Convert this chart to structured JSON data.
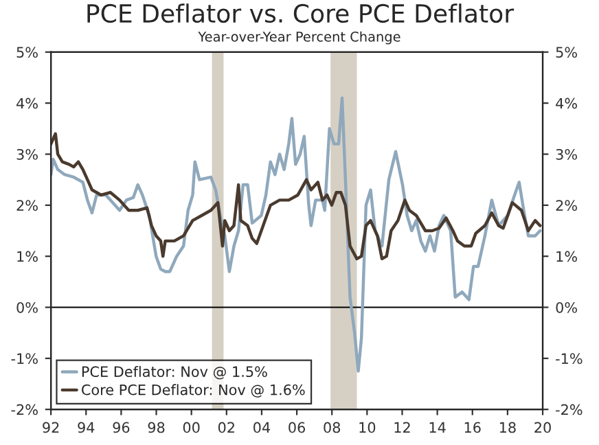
{
  "chart_data": {
    "type": "line",
    "title": "PCE Deflator vs. Core PCE Deflator",
    "subtitle": "Year-over-Year Percent Change",
    "series": [
      {
        "name": "PCE Deflator: Nov @ 1.5%",
        "color": "#8fa8bc",
        "x": [
          1992.0,
          1992.13,
          1992.39,
          1992.78,
          1993.3,
          1993.82,
          1994.08,
          1994.34,
          1994.6,
          1995.13,
          1995.65,
          1995.91,
          1996.3,
          1996.69,
          1996.95,
          1997.21,
          1997.6,
          1997.99,
          1998.25,
          1998.51,
          1998.77,
          1999.16,
          1999.55,
          1999.81,
          2000.07,
          2000.2,
          2000.46,
          2001.11,
          2001.38,
          2001.64,
          2001.9,
          2002.16,
          2002.42,
          2002.68,
          2002.94,
          2003.2,
          2003.46,
          2003.98,
          2004.24,
          2004.5,
          2004.76,
          2005.02,
          2005.28,
          2005.54,
          2005.72,
          2005.93,
          2006.19,
          2006.42,
          2006.68,
          2006.81,
          2007.07,
          2007.46,
          2007.59,
          2007.86,
          2008.12,
          2008.38,
          2008.58,
          2008.77,
          2009.03,
          2009.29,
          2009.5,
          2009.68,
          2009.94,
          2010.2,
          2010.46,
          2010.85,
          2011.24,
          2011.63,
          2012.02,
          2012.28,
          2012.54,
          2012.8,
          2013.06,
          2013.32,
          2013.58,
          2013.84,
          2014.1,
          2014.37,
          2014.76,
          2015.02,
          2015.41,
          2015.8,
          2016.06,
          2016.32,
          2016.71,
          2017.1,
          2017.49,
          2018.01,
          2018.4,
          2018.66,
          2018.92,
          2019.18,
          2019.57,
          2019.85
        ],
        "values": [
          2.6,
          2.9,
          2.7,
          2.6,
          2.55,
          2.45,
          2.1,
          1.85,
          2.2,
          2.2,
          2.0,
          1.9,
          2.1,
          2.15,
          2.4,
          2.2,
          1.8,
          1.0,
          0.75,
          0.7,
          0.7,
          1.0,
          1.2,
          1.9,
          2.2,
          2.85,
          2.5,
          2.55,
          2.3,
          1.8,
          1.4,
          0.7,
          1.2,
          1.5,
          2.4,
          2.4,
          1.65,
          1.8,
          2.2,
          2.85,
          2.6,
          3.0,
          2.7,
          3.2,
          3.7,
          2.8,
          3.0,
          3.35,
          2.0,
          1.6,
          2.1,
          2.1,
          1.9,
          3.5,
          3.2,
          3.2,
          4.1,
          2.5,
          0.2,
          -0.5,
          -1.25,
          -0.6,
          2.0,
          2.3,
          1.5,
          1.2,
          2.5,
          3.05,
          2.4,
          1.8,
          1.5,
          1.7,
          1.3,
          1.1,
          1.4,
          1.1,
          1.6,
          1.8,
          1.5,
          0.2,
          0.3,
          0.15,
          0.8,
          0.8,
          1.4,
          2.1,
          1.6,
          1.8,
          2.2,
          2.45,
          1.9,
          1.4,
          1.4,
          1.5
        ]
      },
      {
        "name": "Core PCE Deflator: Nov @ 1.6%",
        "color": "#4a3a2e",
        "x": [
          1992.0,
          1992.13,
          1992.26,
          1992.39,
          1992.65,
          1993.04,
          1993.3,
          1993.56,
          1993.82,
          1994.08,
          1994.34,
          1994.86,
          1995.39,
          1995.91,
          1996.43,
          1996.95,
          1997.47,
          1997.73,
          1997.99,
          1998.25,
          1998.38,
          1998.51,
          1999.03,
          1999.55,
          2000.07,
          2000.59,
          2001.11,
          2001.51,
          2001.77,
          2001.9,
          2002.16,
          2002.42,
          2002.68,
          2002.81,
          2003.2,
          2003.46,
          2003.72,
          2003.98,
          2004.5,
          2005.02,
          2005.54,
          2006.06,
          2006.55,
          2006.81,
          2007.2,
          2007.46,
          2007.72,
          2007.99,
          2008.25,
          2008.51,
          2008.77,
          2009.03,
          2009.42,
          2009.68,
          2009.94,
          2010.2,
          2010.59,
          2010.85,
          2011.11,
          2011.37,
          2011.76,
          2012.15,
          2012.41,
          2012.8,
          2013.32,
          2013.71,
          2014.1,
          2014.5,
          2014.89,
          2015.15,
          2015.54,
          2015.93,
          2016.19,
          2016.71,
          2017.1,
          2017.49,
          2017.75,
          2018.27,
          2018.79,
          2019.18,
          2019.57,
          2019.85
        ],
        "values": [
          3.2,
          3.3,
          3.4,
          3.0,
          2.85,
          2.8,
          2.75,
          2.85,
          2.7,
          2.5,
          2.3,
          2.2,
          2.25,
          2.1,
          1.9,
          1.9,
          1.95,
          1.6,
          1.4,
          1.3,
          1.0,
          1.3,
          1.3,
          1.4,
          1.7,
          1.8,
          1.9,
          2.05,
          1.2,
          1.7,
          1.5,
          1.6,
          2.4,
          1.7,
          1.6,
          1.35,
          1.25,
          1.5,
          2.0,
          2.1,
          2.1,
          2.2,
          2.5,
          2.3,
          2.45,
          2.1,
          2.2,
          2.0,
          2.25,
          2.25,
          2.0,
          1.2,
          0.95,
          1.0,
          1.6,
          1.7,
          1.4,
          0.95,
          1.0,
          1.5,
          1.7,
          2.1,
          1.9,
          1.8,
          1.5,
          1.5,
          1.55,
          1.75,
          1.5,
          1.3,
          1.2,
          1.2,
          1.45,
          1.6,
          1.85,
          1.6,
          1.55,
          2.05,
          1.9,
          1.5,
          1.7,
          1.6
        ]
      }
    ],
    "xlim": [
      1992,
      2020
    ],
    "xticks": [
      {
        "value": 1992,
        "label": "92"
      },
      {
        "value": 1994,
        "label": "94"
      },
      {
        "value": 1996,
        "label": "96"
      },
      {
        "value": 1998,
        "label": "98"
      },
      {
        "value": 2000,
        "label": "00"
      },
      {
        "value": 2002,
        "label": "02"
      },
      {
        "value": 2004,
        "label": "04"
      },
      {
        "value": 2006,
        "label": "06"
      },
      {
        "value": 2008,
        "label": "08"
      },
      {
        "value": 2010,
        "label": "10"
      },
      {
        "value": 2012,
        "label": "12"
      },
      {
        "value": 2014,
        "label": "14"
      },
      {
        "value": 2016,
        "label": "16"
      },
      {
        "value": 2018,
        "label": "18"
      },
      {
        "value": 2020,
        "label": "20"
      }
    ],
    "ylim": [
      -2,
      5
    ],
    "yticks": [
      {
        "value": -2,
        "label": "-2%"
      },
      {
        "value": -1,
        "label": "-1%"
      },
      {
        "value": 0,
        "label": "0%"
      },
      {
        "value": 1,
        "label": "1%"
      },
      {
        "value": 2,
        "label": "2%"
      },
      {
        "value": 3,
        "label": "3%"
      },
      {
        "value": 4,
        "label": "4%"
      },
      {
        "value": 5,
        "label": "5%"
      }
    ],
    "y2lim": [
      -2,
      5
    ],
    "y2ticks": [
      {
        "value": -2,
        "label": "-2%"
      },
      {
        "value": -1,
        "label": "-1%"
      },
      {
        "value": 0,
        "label": "0%"
      },
      {
        "value": 1,
        "label": "1%"
      },
      {
        "value": 2,
        "label": "2%"
      },
      {
        "value": 3,
        "label": "3%"
      },
      {
        "value": 4,
        "label": "4%"
      },
      {
        "value": 5,
        "label": "5%"
      }
    ],
    "ref_lines": [
      {
        "axis": "y",
        "value": 0,
        "color": "#000000"
      }
    ],
    "bands": [
      {
        "axis": "x",
        "from": 2001.17,
        "to": 2001.83,
        "color": "#d6d0c4"
      },
      {
        "axis": "x",
        "from": 2007.92,
        "to": 2009.42,
        "color": "#d6d0c4"
      }
    ],
    "grid": false,
    "legend": "bottom left",
    "marker": "none",
    "line_style": "solid"
  }
}
